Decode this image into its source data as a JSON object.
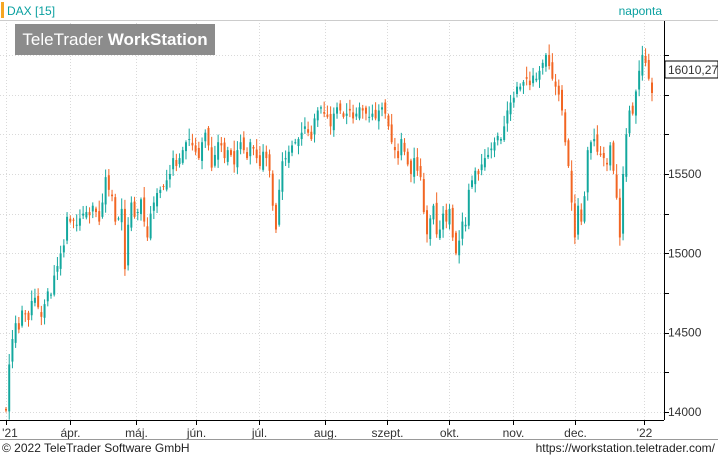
{
  "header": {
    "symbol_label": "DAX [15]",
    "period_label": "naponta"
  },
  "logo": {
    "brand": "TeleTrader",
    "product": "WorkStation"
  },
  "footer": {
    "copyright": "© 2022  TeleTrader Software GmbH",
    "url": "https://workstation.teletrader.com/"
  },
  "colors": {
    "up": "#13a89e",
    "down": "#f26522",
    "accent": "#f5a623",
    "header_text": "#0aa0a0",
    "grid": "#d9d9d9"
  },
  "chart_data": {
    "type": "candlestick",
    "instrument": "DAX",
    "interval": "daily",
    "last_value_label": "16010,27",
    "last_value": 16010.27,
    "ylim": [
      13950,
      16470
    ],
    "y_ticks": [
      14000,
      14500,
      15000,
      15500
    ],
    "y_tick_labels": [
      "14000",
      "14500",
      "15000",
      "15500"
    ],
    "x_tick_labels": [
      "'21",
      "ápr.",
      "máj.",
      "jún.",
      "júl.",
      "aug.",
      "szept.",
      "okt.",
      "nov.",
      "dec.",
      "'22"
    ],
    "x_tick_dates": [
      "2021-03-01",
      "2021-04-01",
      "2021-05-03",
      "2021-06-01",
      "2021-07-01",
      "2021-08-02",
      "2021-09-01",
      "2021-10-01",
      "2021-11-01",
      "2021-12-01",
      "2022-01-03"
    ],
    "closes": [
      14010,
      14300,
      14460,
      14560,
      14520,
      14640,
      14620,
      14580,
      14700,
      14720,
      14660,
      14600,
      14680,
      14760,
      14740,
      14860,
      14920,
      15000,
      15050,
      15230,
      15200,
      15210,
      15180,
      15220,
      15250,
      15260,
      15240,
      15300,
      15260,
      15200,
      15320,
      15480,
      15400,
      15360,
      15200,
      15220,
      15280,
      14900,
      15180,
      15320,
      15230,
      15260,
      15340,
      15200,
      15100,
      15250,
      15320,
      15380,
      15400,
      15420,
      15460,
      15500,
      15600,
      15550,
      15600,
      15650,
      15700,
      15720,
      15680,
      15640,
      15600,
      15700,
      15760,
      15680,
      15540,
      15620,
      15700,
      15680,
      15600,
      15650,
      15620,
      15560,
      15650,
      15700,
      15650,
      15600,
      15700,
      15660,
      15600,
      15550,
      15640,
      15600,
      15520,
      15300,
      15150,
      15400,
      15580,
      15600,
      15640,
      15680,
      15700,
      15720,
      15760,
      15800,
      15760,
      15720,
      15850,
      15900,
      15920,
      15880,
      15860,
      15800,
      15880,
      15920,
      15900,
      15860,
      15880,
      15900,
      15850,
      15880,
      15920,
      15900,
      15880,
      15860,
      15880,
      15850,
      15900,
      15920,
      15880,
      15800,
      15700,
      15650,
      15600,
      15720,
      15640,
      15560,
      15500,
      15600,
      15520,
      15480,
      15260,
      15120,
      15220,
      15300,
      15120,
      15150,
      15250,
      15200,
      15280,
      15100,
      15000,
      15080,
      15200,
      15180,
      15400,
      15460,
      15520,
      15500,
      15560,
      15600,
      15620,
      15660,
      15700,
      15740,
      15720,
      15800,
      15900,
      15950,
      15980,
      16050,
      16050,
      16080,
      16100,
      16060,
      16120,
      16100,
      16150,
      16200,
      16250,
      16180,
      16100,
      16050,
      16000,
      15900,
      15700,
      15550,
      15320,
      15100,
      15300,
      15200,
      15360,
      15650,
      15700,
      15720,
      15640,
      15620,
      15600,
      15560,
      15680,
      15520,
      15350,
      15100,
      15500,
      15750,
      15900,
      15880,
      16020,
      16150,
      16250,
      16200,
      16100,
      16010
    ]
  }
}
